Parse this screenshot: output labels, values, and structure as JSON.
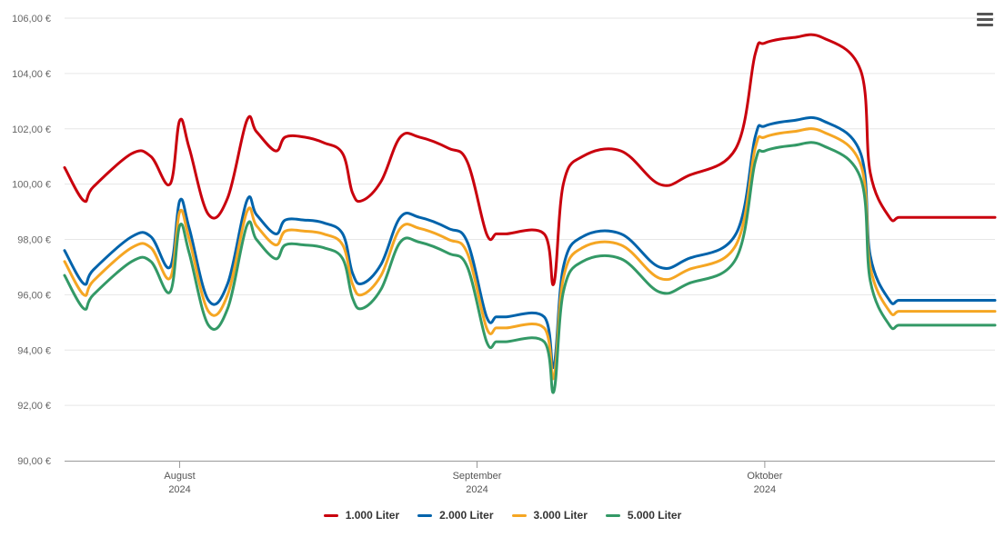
{
  "menu": {
    "icon": "hamburger-menu-icon"
  },
  "chart_data": {
    "type": "line",
    "title": "",
    "xlabel": "",
    "ylabel": "",
    "ylim": [
      90,
      106
    ],
    "y_ticks": [
      {
        "value": 90,
        "label": "90,00 €"
      },
      {
        "value": 92,
        "label": "92,00 €"
      },
      {
        "value": 94,
        "label": "94,00 €"
      },
      {
        "value": 96,
        "label": "96,00 €"
      },
      {
        "value": 98,
        "label": "98,00 €"
      },
      {
        "value": 100,
        "label": "100,00 €"
      },
      {
        "value": 102,
        "label": "102,00 €"
      },
      {
        "value": 104,
        "label": "104,00 €"
      },
      {
        "value": 106,
        "label": "106,00 €"
      }
    ],
    "xlim": [
      "2024-07-20",
      "2024-10-25"
    ],
    "x_ticks": [
      {
        "date": "2024-08-01",
        "month": "August",
        "year": "2024"
      },
      {
        "date": "2024-09-01",
        "month": "September",
        "year": "2024"
      },
      {
        "date": "2024-10-01",
        "month": "Oktober",
        "year": "2024"
      }
    ],
    "x": [
      "2024-07-20",
      "2024-07-22",
      "2024-07-23",
      "2024-07-27",
      "2024-07-29",
      "2024-07-31",
      "2024-08-01",
      "2024-08-02",
      "2024-08-04",
      "2024-08-06",
      "2024-08-08",
      "2024-08-09",
      "2024-08-11",
      "2024-08-12",
      "2024-08-14",
      "2024-08-16",
      "2024-08-18",
      "2024-08-19",
      "2024-08-20",
      "2024-08-22",
      "2024-08-24",
      "2024-08-26",
      "2024-08-29",
      "2024-08-31",
      "2024-09-02",
      "2024-09-03",
      "2024-09-04",
      "2024-09-08",
      "2024-09-09",
      "2024-09-10",
      "2024-09-12",
      "2024-09-16",
      "2024-09-20",
      "2024-09-23",
      "2024-09-28",
      "2024-09-30",
      "2024-10-01",
      "2024-10-04",
      "2024-10-07",
      "2024-10-11",
      "2024-10-12",
      "2024-10-14",
      "2024-10-15",
      "2024-10-17",
      "2024-10-25"
    ],
    "series": [
      {
        "name": "1.000 Liter",
        "color": "#c9000d",
        "values": [
          100.6,
          99.4,
          99.9,
          101.1,
          101.0,
          100.0,
          102.3,
          101.3,
          98.9,
          99.5,
          102.3,
          101.9,
          101.2,
          101.7,
          101.7,
          101.5,
          101.1,
          99.7,
          99.4,
          100.1,
          101.7,
          101.7,
          101.3,
          100.8,
          98.2,
          98.2,
          98.2,
          98.2,
          96.4,
          100.0,
          101.0,
          101.2,
          100.0,
          100.3,
          101.3,
          104.7,
          105.1,
          105.3,
          105.3,
          104.1,
          100.4,
          98.8,
          98.8,
          98.8,
          98.8
        ]
      },
      {
        "name": "2.000 Liter",
        "color": "#0063ab",
        "values": [
          97.6,
          96.4,
          96.9,
          98.1,
          98.1,
          97.0,
          99.4,
          98.4,
          95.8,
          96.4,
          99.4,
          98.9,
          98.2,
          98.7,
          98.7,
          98.6,
          98.2,
          96.8,
          96.4,
          97.1,
          98.8,
          98.8,
          98.4,
          97.9,
          95.2,
          95.2,
          95.2,
          95.2,
          93.4,
          97.0,
          98.1,
          98.2,
          97.0,
          97.3,
          98.2,
          101.7,
          102.1,
          102.3,
          102.3,
          101.1,
          97.4,
          95.8,
          95.8,
          95.8,
          95.8
        ]
      },
      {
        "name": "3.000 Liter",
        "color": "#f5a623",
        "values": [
          97.2,
          96.0,
          96.5,
          97.7,
          97.7,
          96.6,
          99.0,
          98.0,
          95.4,
          96.0,
          99.0,
          98.5,
          97.8,
          98.3,
          98.3,
          98.2,
          97.8,
          96.4,
          96.0,
          96.7,
          98.4,
          98.4,
          98.0,
          97.5,
          94.8,
          94.8,
          94.8,
          94.8,
          93.0,
          96.6,
          97.7,
          97.8,
          96.6,
          96.9,
          97.8,
          101.3,
          101.7,
          101.9,
          101.9,
          100.7,
          97.0,
          95.4,
          95.4,
          95.4,
          95.4
        ]
      },
      {
        "name": "5.000 Liter",
        "color": "#339966",
        "values": [
          96.7,
          95.5,
          96.0,
          97.2,
          97.2,
          96.1,
          98.5,
          97.5,
          94.9,
          95.5,
          98.5,
          98.0,
          97.3,
          97.8,
          97.8,
          97.7,
          97.3,
          95.9,
          95.5,
          96.2,
          97.9,
          97.9,
          97.5,
          97.0,
          94.3,
          94.3,
          94.3,
          94.3,
          92.5,
          96.1,
          97.2,
          97.3,
          96.1,
          96.4,
          97.3,
          100.8,
          101.2,
          101.4,
          101.4,
          100.2,
          96.5,
          94.9,
          94.9,
          94.9,
          94.9
        ]
      }
    ],
    "legend_position": "bottom-center",
    "grid": true
  }
}
